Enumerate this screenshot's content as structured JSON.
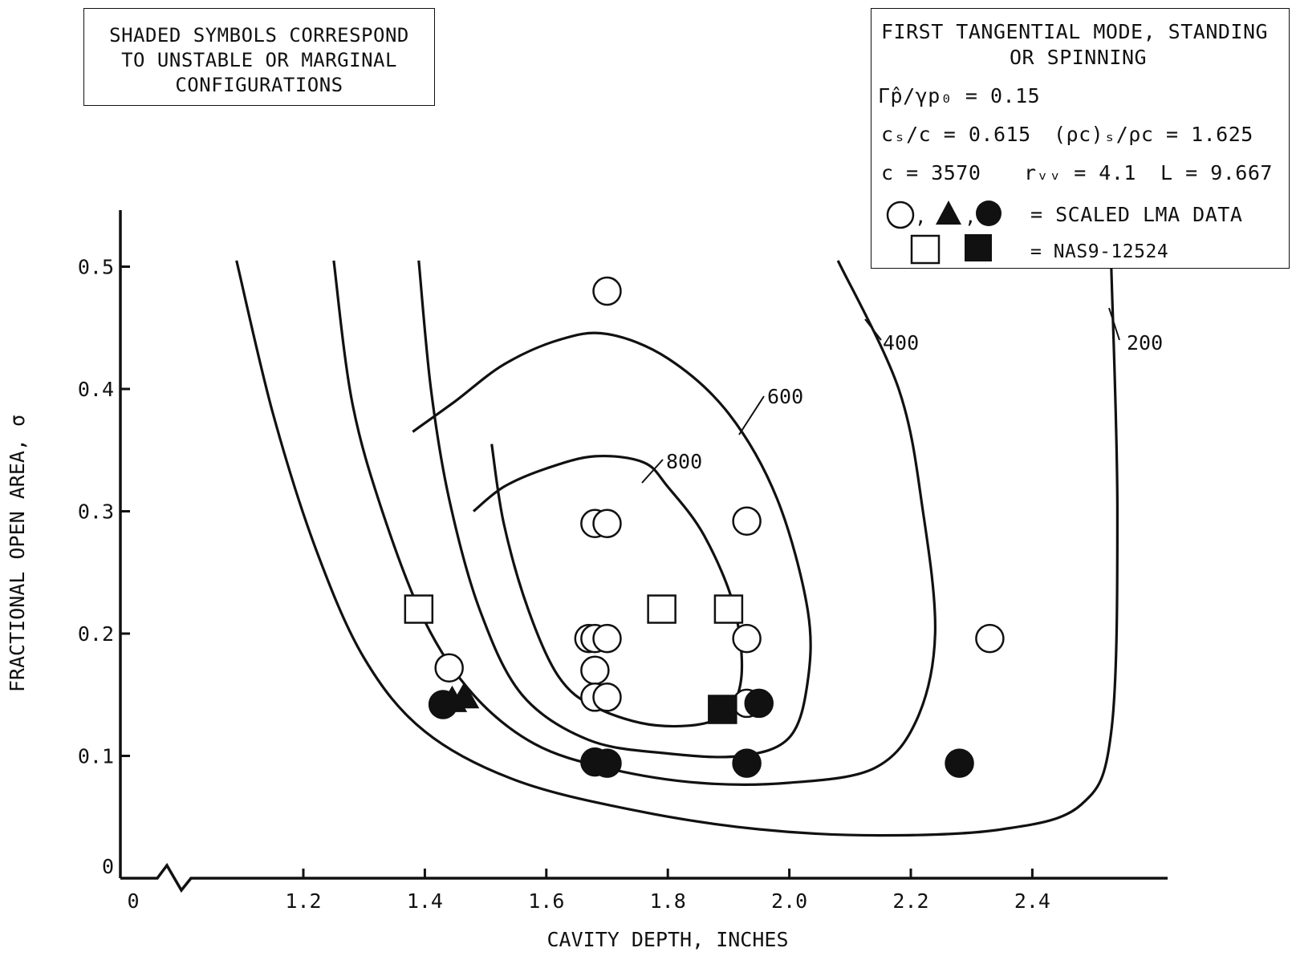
{
  "note": {
    "lines": [
      "SHADED SYMBOLS CORRESPOND",
      "TO UNSTABLE OR MARGINAL",
      "CONFIGURATIONS"
    ]
  },
  "params": {
    "title_lines": [
      "FIRST TANGENTIAL MODE, STANDING",
      "OR SPINNING"
    ],
    "gamma": "Γp̂/γp₀ = 0.15",
    "cs_ratio": "cₛ/c = 0.615",
    "rho_ratio": "(ρc)ₛ/ρc = 1.625",
    "c": "c = 3570",
    "rw": "rᵥᵥ = 4.1",
    "L": "L = 9.667",
    "lma_label": "= SCALED LMA DATA",
    "nas_label": "= NAS9-12524"
  },
  "chart_data": {
    "type": "scatter",
    "xlabel": "CAVITY DEPTH, INCHES",
    "ylabel": "FRACTIONAL OPEN AREA, σ",
    "x_ticks": [
      "0",
      "1.2",
      "1.4",
      "1.6",
      "1.8",
      "2.0",
      "2.2",
      "2.4"
    ],
    "y_ticks": [
      "0",
      "0.1",
      "0.2",
      "0.3",
      "0.4",
      "0.5"
    ],
    "xlim": [
      1.07,
      2.55
    ],
    "ylim": [
      0,
      0.55
    ],
    "axis_break": "x between 0 and 1.2",
    "contours": [
      {
        "label": "200",
        "points": [
          [
            1.09,
            0.505
          ],
          [
            1.15,
            0.38
          ],
          [
            1.22,
            0.27
          ],
          [
            1.3,
            0.18
          ],
          [
            1.4,
            0.12
          ],
          [
            1.55,
            0.08
          ],
          [
            1.75,
            0.055
          ],
          [
            1.95,
            0.04
          ],
          [
            2.15,
            0.035
          ],
          [
            2.35,
            0.04
          ],
          [
            2.48,
            0.06
          ],
          [
            2.53,
            0.12
          ],
          [
            2.54,
            0.3
          ],
          [
            2.53,
            0.5
          ]
        ]
      },
      {
        "label": "400",
        "points": [
          [
            1.25,
            0.505
          ],
          [
            1.28,
            0.39
          ],
          [
            1.33,
            0.3
          ],
          [
            1.4,
            0.21
          ],
          [
            1.48,
            0.15
          ],
          [
            1.58,
            0.11
          ],
          [
            1.7,
            0.09
          ],
          [
            1.85,
            0.078
          ],
          [
            2.0,
            0.078
          ],
          [
            2.14,
            0.09
          ],
          [
            2.21,
            0.13
          ],
          [
            2.24,
            0.2
          ],
          [
            2.22,
            0.3
          ],
          [
            2.18,
            0.4
          ],
          [
            2.08,
            0.505
          ]
        ]
      },
      {
        "label": "600",
        "points": [
          [
            1.39,
            0.505
          ],
          [
            1.41,
            0.4
          ],
          [
            1.44,
            0.31
          ],
          [
            1.49,
            0.22
          ],
          [
            1.56,
            0.15
          ],
          [
            1.67,
            0.113
          ],
          [
            1.8,
            0.102
          ],
          [
            1.92,
            0.1
          ],
          [
            2.0,
            0.115
          ],
          [
            2.03,
            0.16
          ],
          [
            2.03,
            0.22
          ],
          [
            1.98,
            0.31
          ],
          [
            1.9,
            0.38
          ],
          [
            1.8,
            0.425
          ],
          [
            1.7,
            0.445
          ],
          [
            1.62,
            0.44
          ],
          [
            1.53,
            0.42
          ],
          [
            1.45,
            0.39
          ],
          [
            1.38,
            0.365
          ]
        ]
      },
      {
        "label": "800",
        "points": [
          [
            1.51,
            0.355
          ],
          [
            1.53,
            0.29
          ],
          [
            1.57,
            0.22
          ],
          [
            1.62,
            0.165
          ],
          [
            1.68,
            0.14
          ],
          [
            1.78,
            0.125
          ],
          [
            1.88,
            0.13
          ],
          [
            1.92,
            0.16
          ],
          [
            1.91,
            0.22
          ],
          [
            1.86,
            0.28
          ],
          [
            1.8,
            0.32
          ],
          [
            1.76,
            0.34
          ],
          [
            1.68,
            0.345
          ],
          [
            1.6,
            0.335
          ],
          [
            1.53,
            0.32
          ],
          [
            1.48,
            0.3
          ]
        ]
      }
    ],
    "series": [
      {
        "name": "SCALED LMA DATA",
        "marker": "circle",
        "shaded": false,
        "points": [
          [
            1.7,
            0.48
          ],
          [
            1.68,
            0.29
          ],
          [
            1.7,
            0.29
          ],
          [
            1.93,
            0.292
          ],
          [
            1.67,
            0.196
          ],
          [
            1.68,
            0.196
          ],
          [
            1.7,
            0.196
          ],
          [
            1.68,
            0.17
          ],
          [
            1.68,
            0.148
          ],
          [
            1.7,
            0.148
          ],
          [
            1.44,
            0.172
          ],
          [
            1.93,
            0.196
          ],
          [
            1.93,
            0.143
          ],
          [
            2.33,
            0.196
          ]
        ]
      },
      {
        "name": "SCALED LMA DATA",
        "marker": "triangle",
        "shaded": true,
        "points": [
          [
            1.445,
            0.145
          ],
          [
            1.465,
            0.148
          ]
        ]
      },
      {
        "name": "SCALED LMA DATA",
        "marker": "circle",
        "shaded": true,
        "points": [
          [
            1.43,
            0.142
          ],
          [
            1.68,
            0.095
          ],
          [
            1.7,
            0.094
          ],
          [
            1.93,
            0.094
          ],
          [
            1.95,
            0.143
          ],
          [
            2.28,
            0.094
          ]
        ]
      },
      {
        "name": "NAS9-12524",
        "marker": "square",
        "shaded": false,
        "points": [
          [
            1.39,
            0.22
          ],
          [
            1.79,
            0.22
          ],
          [
            1.9,
            0.22
          ]
        ]
      },
      {
        "name": "NAS9-12524",
        "marker": "square",
        "shaded": true,
        "points": [
          [
            1.89,
            0.138
          ]
        ]
      }
    ]
  }
}
